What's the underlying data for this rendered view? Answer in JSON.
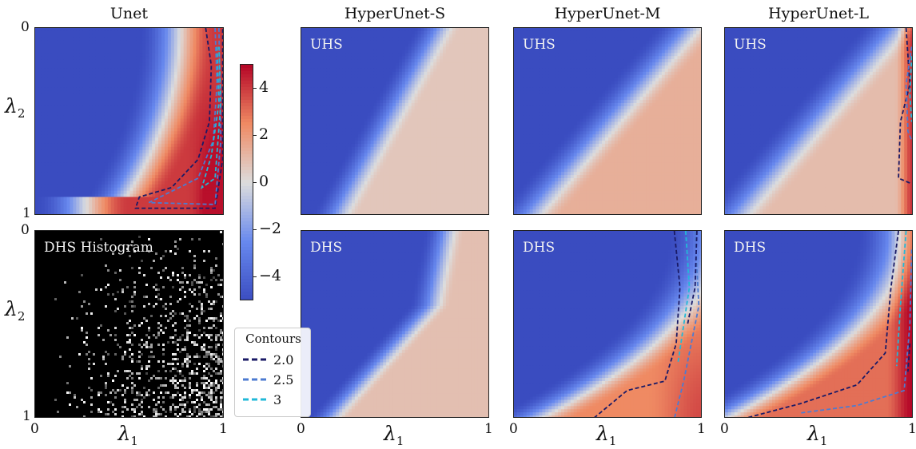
{
  "chart_data": {
    "type": "heatmap",
    "panel_titles": [
      "Unet",
      "HyperUnet-S",
      "HyperUnet-M",
      "HyperUnet-L"
    ],
    "row_labels": [
      "UHS",
      "DHS"
    ],
    "histogram_label": "DHS Histogram",
    "xlabel": "λ",
    "xlabel_sub": "1",
    "ylabel": "λ",
    "ylabel_sub": "2",
    "xlim": [
      0,
      1
    ],
    "ylim": [
      0,
      1
    ],
    "x_ticks": [
      "0",
      "1"
    ],
    "y_ticks": [
      "0",
      "1"
    ],
    "colorbar": {
      "colormap": "coolwarm",
      "range": [
        -5,
        5
      ],
      "ticks": [
        "4",
        "2",
        "0",
        "−2",
        "−4"
      ],
      "low_color": "#3a4cc0",
      "mid_color": "#dddddd",
      "high_color": "#b40426"
    },
    "legend": {
      "title": "Contours",
      "entries": [
        {
          "label": "2.0",
          "value": 2.0,
          "color": "#1a1a66"
        },
        {
          "label": "2.5",
          "value": 2.5,
          "color": "#4d7bd1"
        },
        {
          "label": "3",
          "value": 3.0,
          "color": "#22b8d8"
        }
      ]
    },
    "histogram": {
      "background": "#000000",
      "point_color": "#ffffff"
    }
  }
}
